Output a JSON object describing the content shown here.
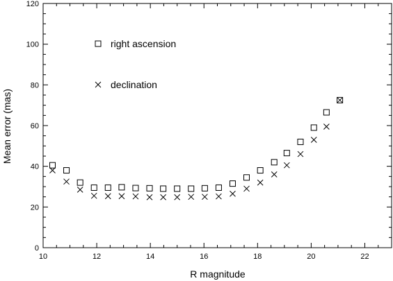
{
  "chart_data": {
    "type": "scatter",
    "xlabel": "R magnitude",
    "ylabel": "Mean error (mas)",
    "xlim": [
      10,
      23
    ],
    "ylim": [
      0,
      120
    ],
    "xticks": [
      10,
      12,
      14,
      16,
      18,
      20,
      22
    ],
    "yticks": [
      0,
      20,
      40,
      60,
      80,
      100,
      120
    ],
    "grid": false,
    "legend_position": "upper-left",
    "series": [
      {
        "name": "right ascension",
        "marker": "square",
        "x": [
          10.35,
          10.87,
          11.38,
          11.9,
          12.42,
          12.93,
          13.45,
          13.97,
          14.48,
          15.0,
          15.52,
          16.03,
          16.55,
          17.07,
          17.59,
          18.1,
          18.62,
          19.09,
          19.6,
          20.1,
          20.57,
          21.07
        ],
        "y": [
          40.5,
          38.0,
          32.0,
          29.5,
          29.5,
          29.7,
          29.3,
          29.2,
          29.0,
          29.0,
          29.0,
          29.2,
          29.5,
          31.5,
          34.5,
          38.0,
          42.0,
          46.5,
          52.0,
          59.0,
          66.5,
          72.5
        ]
      },
      {
        "name": "declination",
        "marker": "cross",
        "x": [
          10.35,
          10.87,
          11.38,
          11.9,
          12.42,
          12.93,
          13.45,
          13.97,
          14.48,
          15.0,
          15.52,
          16.03,
          16.55,
          17.07,
          17.59,
          18.1,
          18.62,
          19.09,
          19.6,
          20.1,
          20.57,
          21.07
        ],
        "y": [
          38.0,
          32.5,
          28.5,
          25.5,
          25.3,
          25.3,
          25.2,
          24.8,
          24.8,
          24.8,
          25.0,
          25.0,
          25.2,
          26.5,
          29.0,
          32.0,
          36.0,
          40.5,
          46.0,
          53.0,
          59.5,
          72.5
        ]
      }
    ]
  }
}
